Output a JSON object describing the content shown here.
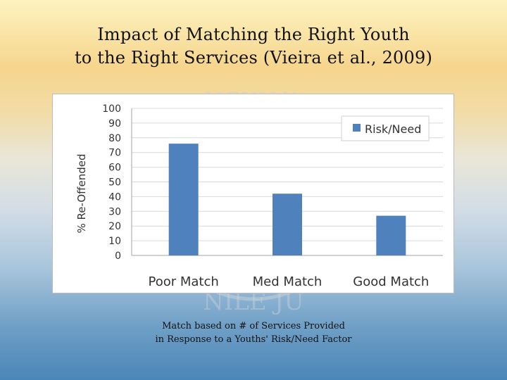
{
  "slide": {
    "title_line1": "Impact of Matching the Right Youth",
    "title_line2": "to the Right Services (Vieira et al., 2009)",
    "caption_line1": "Match based on # of Services Provided",
    "caption_line2": "in Response to a Youths' Risk/Need Factor"
  },
  "colors": {
    "bar": "#4f81bd",
    "grid": "#d9d9d9",
    "axis": "#a6a6a6"
  },
  "chart_data": {
    "type": "bar",
    "title": "",
    "xlabel": "",
    "ylabel": "% Re-Offended",
    "categories": [
      "Poor Match",
      "Med Match",
      "Good Match"
    ],
    "series": [
      {
        "name": "Risk/Need",
        "values": [
          76,
          42,
          27
        ]
      }
    ],
    "ylim": [
      0,
      100
    ],
    "yticks": [
      0,
      10,
      20,
      30,
      40,
      50,
      60,
      70,
      80,
      90,
      100
    ],
    "grid": true,
    "legend": "top-right"
  }
}
